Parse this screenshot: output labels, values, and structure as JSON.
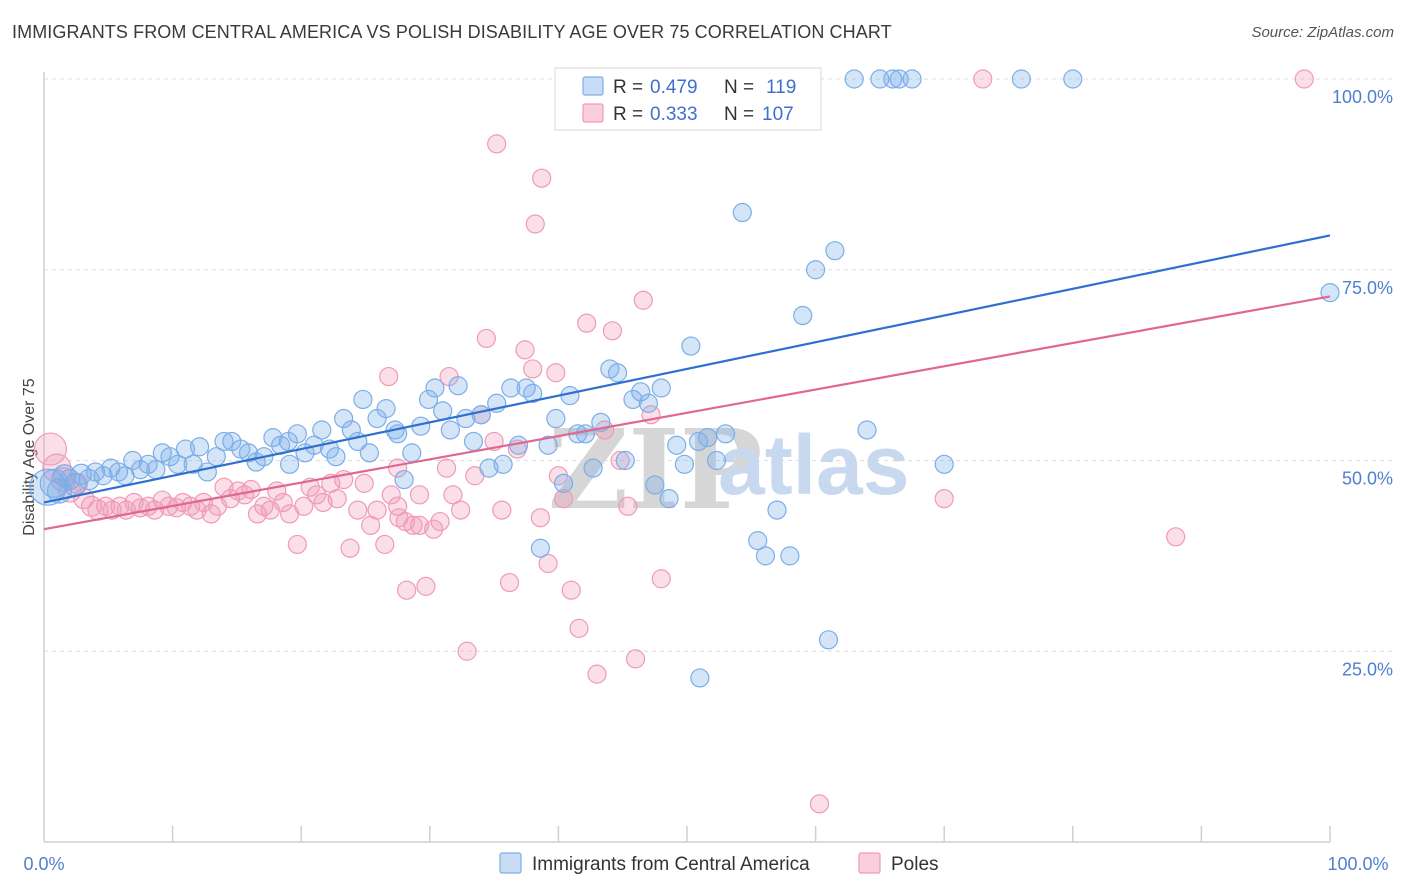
{
  "header": {
    "title": "IMMIGRANTS FROM CENTRAL AMERICA VS POLISH DISABILITY AGE OVER 75 CORRELATION CHART",
    "source": "Source: ZipAtlas.com"
  },
  "watermark": {
    "part1": "ZIP",
    "part2": "atlas"
  },
  "legend_stats": {
    "r_label": "R =",
    "n_label": "N =",
    "rows": [
      {
        "r": "0.479",
        "n": "119",
        "color": "#7baee8"
      },
      {
        "r": "0.333",
        "n": "107",
        "color": "#f09ab6"
      }
    ]
  },
  "bottom_legend": [
    {
      "label": "Immigrants from Central America",
      "color": "#7baee8"
    },
    {
      "label": "Poles",
      "color": "#f09ab6"
    }
  ],
  "chart_data": {
    "type": "scatter",
    "title": "IMMIGRANTS FROM CENTRAL AMERICA VS POLISH DISABILITY AGE OVER 75 CORRELATION CHART",
    "xlabel": "",
    "ylabel": "Disability Age Over 75",
    "xlim": [
      0,
      100
    ],
    "ylim": [
      0,
      100
    ],
    "x_tick_labels": [
      "0.0%",
      "100.0%"
    ],
    "y_tick_labels": [
      {
        "value": 100,
        "label": "100.0%"
      },
      {
        "value": 75,
        "label": "75.0%"
      },
      {
        "value": 50,
        "label": "50.0%"
      },
      {
        "value": 25,
        "label": "25.0%"
      }
    ],
    "grid": true,
    "legend_placement": "top-center",
    "series": [
      {
        "name": "Immigrants from Central America",
        "color": "#7baee8",
        "line_color": "#2f6fd0",
        "trend": {
          "x0": 0,
          "y0": 44.5,
          "x1": 100,
          "y1": 79.5
        },
        "points": [
          [
            0.3,
            46.5,
            18
          ],
          [
            0.8,
            47.0,
            14
          ],
          [
            1.2,
            46.0,
            12
          ],
          [
            1.6,
            48.0,
            11
          ],
          [
            2.0,
            47.5,
            10
          ],
          [
            2.4,
            46.8,
            11
          ],
          [
            2.9,
            48.2,
            10
          ],
          [
            3.5,
            47.5,
            10
          ],
          [
            4.0,
            48.5,
            9
          ],
          [
            4.6,
            48.0,
            9
          ],
          [
            5.2,
            49.0,
            9
          ],
          [
            5.8,
            48.5,
            9
          ],
          [
            6.3,
            48.0,
            9
          ],
          [
            6.9,
            50.0,
            9
          ],
          [
            7.5,
            48.8,
            9
          ],
          [
            8.1,
            49.5,
            9
          ],
          [
            8.7,
            48.8,
            9
          ],
          [
            9.2,
            51.0,
            9
          ],
          [
            9.8,
            50.5,
            9
          ],
          [
            10.4,
            49.5,
            9
          ],
          [
            11.0,
            51.5,
            9
          ],
          [
            11.6,
            49.5,
            9
          ],
          [
            12.1,
            51.8,
            9
          ],
          [
            12.7,
            48.5,
            9
          ],
          [
            13.4,
            50.5,
            9
          ],
          [
            14.0,
            52.5,
            9
          ],
          [
            14.6,
            52.5,
            9
          ],
          [
            15.3,
            51.5,
            9
          ],
          [
            15.9,
            51.0,
            9
          ],
          [
            16.5,
            49.8,
            9
          ],
          [
            17.1,
            50.5,
            9
          ],
          [
            17.8,
            53.0,
            9
          ],
          [
            18.4,
            52.0,
            9
          ],
          [
            19.0,
            52.5,
            9
          ],
          [
            19.1,
            49.5,
            9
          ],
          [
            19.7,
            53.5,
            9
          ],
          [
            20.3,
            51.0,
            9
          ],
          [
            21.0,
            52.0,
            9
          ],
          [
            21.6,
            54.0,
            9
          ],
          [
            22.2,
            51.5,
            9
          ],
          [
            22.7,
            50.5,
            9
          ],
          [
            23.3,
            55.5,
            9
          ],
          [
            23.9,
            54.0,
            9
          ],
          [
            24.4,
            52.5,
            9
          ],
          [
            24.8,
            58.0,
            9
          ],
          [
            25.3,
            51.0,
            9
          ],
          [
            25.9,
            55.5,
            9
          ],
          [
            26.6,
            56.8,
            9
          ],
          [
            27.3,
            54.0,
            9
          ],
          [
            27.5,
            53.5,
            9
          ],
          [
            28.0,
            47.5,
            9
          ],
          [
            28.6,
            51.0,
            9
          ],
          [
            29.3,
            54.5,
            9
          ],
          [
            29.9,
            58.0,
            9
          ],
          [
            30.4,
            59.5,
            9
          ],
          [
            31.0,
            56.5,
            9
          ],
          [
            31.6,
            54.0,
            9
          ],
          [
            32.2,
            59.8,
            9
          ],
          [
            32.8,
            55.5,
            9
          ],
          [
            33.4,
            52.5,
            9
          ],
          [
            34.0,
            56.0,
            9
          ],
          [
            34.6,
            49.0,
            9
          ],
          [
            35.2,
            57.5,
            9
          ],
          [
            35.7,
            49.5,
            9
          ],
          [
            36.3,
            59.5,
            9
          ],
          [
            36.9,
            52.0,
            9
          ],
          [
            37.5,
            59.5,
            9
          ],
          [
            38.0,
            58.8,
            9
          ],
          [
            38.6,
            38.5,
            9
          ],
          [
            39.2,
            52.0,
            9
          ],
          [
            39.8,
            55.5,
            9
          ],
          [
            40.4,
            47.0,
            9
          ],
          [
            40.9,
            58.5,
            9
          ],
          [
            41.5,
            53.5,
            9
          ],
          [
            42.1,
            53.5,
            9
          ],
          [
            42.7,
            49.0,
            9
          ],
          [
            43.3,
            55.0,
            9
          ],
          [
            44.0,
            62.0,
            9
          ],
          [
            44.6,
            61.5,
            9
          ],
          [
            45.2,
            50.0,
            9
          ],
          [
            45.8,
            58.0,
            9
          ],
          [
            46.4,
            59.0,
            9
          ],
          [
            47.0,
            57.5,
            9
          ],
          [
            47.5,
            46.8,
            9
          ],
          [
            48.0,
            59.5,
            9
          ],
          [
            48.6,
            45.0,
            9
          ],
          [
            49.2,
            52.0,
            9
          ],
          [
            49.8,
            49.5,
            9
          ],
          [
            50.3,
            65.0,
            9
          ],
          [
            50.9,
            52.5,
            9
          ],
          [
            51.6,
            53.0,
            9
          ],
          [
            52.3,
            50.0,
            9
          ],
          [
            53.0,
            53.5,
            9
          ],
          [
            54.3,
            82.5,
            9
          ],
          [
            55.5,
            39.5,
            9
          ],
          [
            56.1,
            37.5,
            9
          ],
          [
            57.0,
            43.5,
            9
          ],
          [
            58.0,
            37.5,
            9
          ],
          [
            59.0,
            69.0,
            9
          ],
          [
            60.0,
            75.0,
            9
          ],
          [
            61.0,
            26.5,
            9
          ],
          [
            61.5,
            77.5,
            9
          ],
          [
            64.0,
            54.0,
            9
          ],
          [
            65.0,
            100,
            9
          ],
          [
            66.0,
            100,
            9
          ],
          [
            67.5,
            100,
            9
          ],
          [
            76.0,
            100,
            9
          ],
          [
            80.0,
            100,
            9
          ],
          [
            51.0,
            21.5,
            9
          ],
          [
            54.0,
            100,
            9
          ],
          [
            58.5,
            100,
            9
          ],
          [
            63.0,
            100,
            9
          ],
          [
            66.5,
            100,
            9
          ],
          [
            70.0,
            49.5,
            9
          ],
          [
            100,
            72.0,
            9
          ]
        ]
      },
      {
        "name": "Poles",
        "color": "#f09ab6",
        "line_color": "#e06890",
        "trend": {
          "x0": 0,
          "y0": 41.0,
          "x1": 100,
          "y1": 71.5
        },
        "points": [
          [
            0.5,
            51.5,
            16
          ],
          [
            1.0,
            49.0,
            14
          ],
          [
            1.5,
            47.5,
            12
          ],
          [
            2.0,
            46.0,
            11
          ],
          [
            2.6,
            47.0,
            10
          ],
          [
            3.1,
            45.0,
            10
          ],
          [
            3.7,
            44.0,
            10
          ],
          [
            4.2,
            43.5,
            10
          ],
          [
            4.8,
            44.0,
            9
          ],
          [
            5.3,
            43.5,
            9
          ],
          [
            5.9,
            44.0,
            9
          ],
          [
            6.4,
            43.5,
            9
          ],
          [
            7.0,
            44.5,
            9
          ],
          [
            7.5,
            43.8,
            9
          ],
          [
            8.1,
            44.0,
            9
          ],
          [
            8.6,
            43.5,
            9
          ],
          [
            9.2,
            44.8,
            9
          ],
          [
            9.7,
            44.0,
            9
          ],
          [
            10.3,
            43.8,
            9
          ],
          [
            10.8,
            44.5,
            9
          ],
          [
            11.4,
            44.0,
            9
          ],
          [
            11.9,
            43.5,
            9
          ],
          [
            12.4,
            44.5,
            9
          ],
          [
            13.0,
            43.0,
            9
          ],
          [
            13.5,
            44.0,
            9
          ],
          [
            14.0,
            46.5,
            9
          ],
          [
            14.5,
            45.0,
            9
          ],
          [
            15.1,
            46.0,
            9
          ],
          [
            15.6,
            45.5,
            9
          ],
          [
            16.1,
            46.2,
            9
          ],
          [
            16.6,
            43.0,
            9
          ],
          [
            17.1,
            44.0,
            9
          ],
          [
            17.6,
            43.5,
            9
          ],
          [
            18.1,
            46.0,
            9
          ],
          [
            18.6,
            44.5,
            9
          ],
          [
            19.1,
            43.0,
            9
          ],
          [
            19.7,
            39.0,
            9
          ],
          [
            20.2,
            44.0,
            9
          ],
          [
            20.7,
            46.5,
            9
          ],
          [
            21.2,
            45.5,
            9
          ],
          [
            21.7,
            44.5,
            9
          ],
          [
            22.3,
            47.0,
            9
          ],
          [
            22.8,
            45.0,
            9
          ],
          [
            23.3,
            47.5,
            9
          ],
          [
            23.8,
            38.5,
            9
          ],
          [
            24.4,
            43.5,
            9
          ],
          [
            24.9,
            47.0,
            9
          ],
          [
            25.4,
            41.5,
            9
          ],
          [
            25.9,
            43.5,
            9
          ],
          [
            26.5,
            39.0,
            9
          ],
          [
            27.0,
            45.5,
            9
          ],
          [
            27.6,
            42.5,
            9
          ],
          [
            28.1,
            42.0,
            9
          ],
          [
            28.7,
            41.5,
            9
          ],
          [
            29.2,
            45.5,
            9
          ],
          [
            29.7,
            33.5,
            9
          ],
          [
            30.3,
            41.0,
            9
          ],
          [
            30.8,
            42.0,
            9
          ],
          [
            31.3,
            49.0,
            9
          ],
          [
            31.8,
            45.5,
            9
          ],
          [
            32.4,
            43.5,
            9
          ],
          [
            32.9,
            25.0,
            9
          ],
          [
            33.5,
            48.0,
            9
          ],
          [
            34.0,
            56.0,
            9
          ],
          [
            34.4,
            66.0,
            9
          ],
          [
            35.0,
            52.5,
            9
          ],
          [
            35.6,
            43.5,
            9
          ],
          [
            36.2,
            34.0,
            9
          ],
          [
            36.8,
            51.5,
            9
          ],
          [
            37.4,
            64.5,
            9
          ],
          [
            38.0,
            62.0,
            9
          ],
          [
            38.6,
            42.5,
            9
          ],
          [
            39.2,
            36.5,
            9
          ],
          [
            39.8,
            61.5,
            9
          ],
          [
            40.4,
            45.0,
            9
          ],
          [
            41.0,
            33.0,
            9
          ],
          [
            41.6,
            28.0,
            9
          ],
          [
            42.2,
            68.0,
            9
          ],
          [
            43.0,
            22.0,
            9
          ],
          [
            43.6,
            54.0,
            9
          ],
          [
            44.2,
            67.0,
            9
          ],
          [
            44.8,
            50.0,
            9
          ],
          [
            45.4,
            44.0,
            9
          ],
          [
            46.0,
            24.0,
            9
          ],
          [
            46.6,
            71.0,
            9
          ],
          [
            47.2,
            56.0,
            9
          ],
          [
            48.0,
            34.5,
            9
          ],
          [
            26.8,
            61.0,
            9
          ],
          [
            31.5,
            61.0,
            9
          ],
          [
            35.2,
            91.5,
            9
          ],
          [
            38.7,
            87.0,
            9
          ],
          [
            38.2,
            81.0,
            9
          ],
          [
            27.5,
            44.0,
            9
          ],
          [
            29.2,
            41.5,
            9
          ],
          [
            28.2,
            33.0,
            9
          ],
          [
            27.5,
            49.0,
            9
          ],
          [
            40.0,
            48.0,
            9
          ],
          [
            41.0,
            100,
            9
          ],
          [
            52.0,
            100,
            9
          ],
          [
            53.0,
            100,
            9
          ],
          [
            56.0,
            100,
            9
          ],
          [
            58.0,
            100,
            9
          ],
          [
            60.3,
            5.0,
            9
          ],
          [
            70.0,
            45.0,
            9
          ],
          [
            73.0,
            100,
            9
          ],
          [
            88.0,
            40.0,
            9
          ],
          [
            98.0,
            100,
            9
          ]
        ]
      }
    ]
  }
}
